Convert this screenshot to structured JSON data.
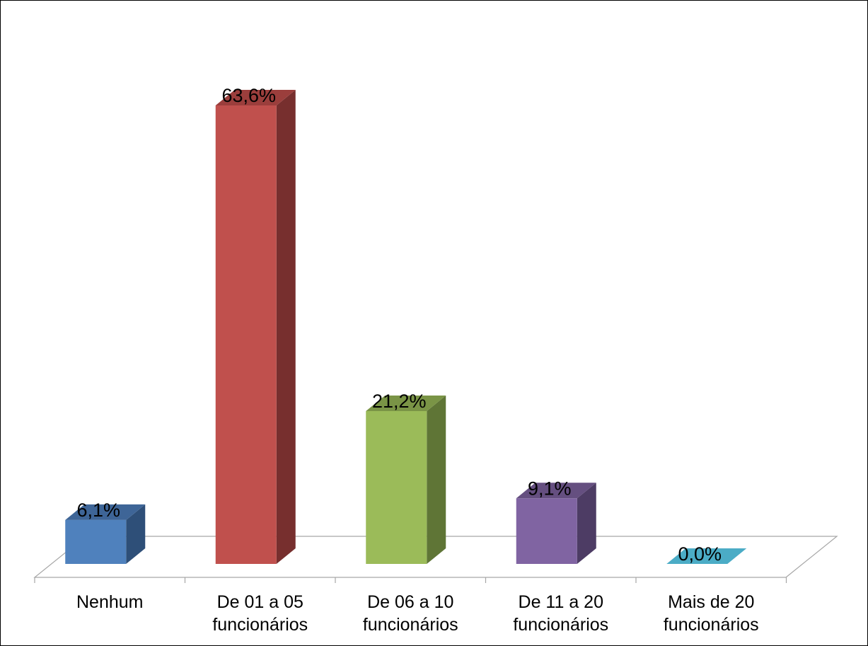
{
  "chart_data": {
    "type": "bar",
    "style": "3d-column",
    "categories": [
      [
        "Nenhum"
      ],
      [
        "De 01 a 05",
        "funcionários"
      ],
      [
        "De 06 a 10",
        "funcionários"
      ],
      [
        "De 11 a 20",
        "funcionários"
      ],
      [
        "Mais de 20",
        "funcionários"
      ]
    ],
    "values": [
      6.1,
      63.6,
      21.2,
      9.1,
      0.0
    ],
    "data_labels": [
      "6,1%",
      "63,6%",
      "21,2%",
      "9,1%",
      "0,0%"
    ],
    "value_unit": "%",
    "ylim": [
      0,
      70
    ],
    "title": "",
    "xlabel": "",
    "ylabel": "",
    "legend": "none",
    "grid": false,
    "colors": {
      "front": [
        "#4F81BD",
        "#C0504D",
        "#9BBB59",
        "#8064A2",
        "#4BACC6"
      ],
      "top": [
        "#3E6597",
        "#9B3E3C",
        "#7A9446",
        "#654F80",
        "#3A8CA4"
      ],
      "side": [
        "#2E4F78",
        "#772F2E",
        "#5F7536",
        "#4D3C64",
        "#2C6C80"
      ]
    }
  }
}
